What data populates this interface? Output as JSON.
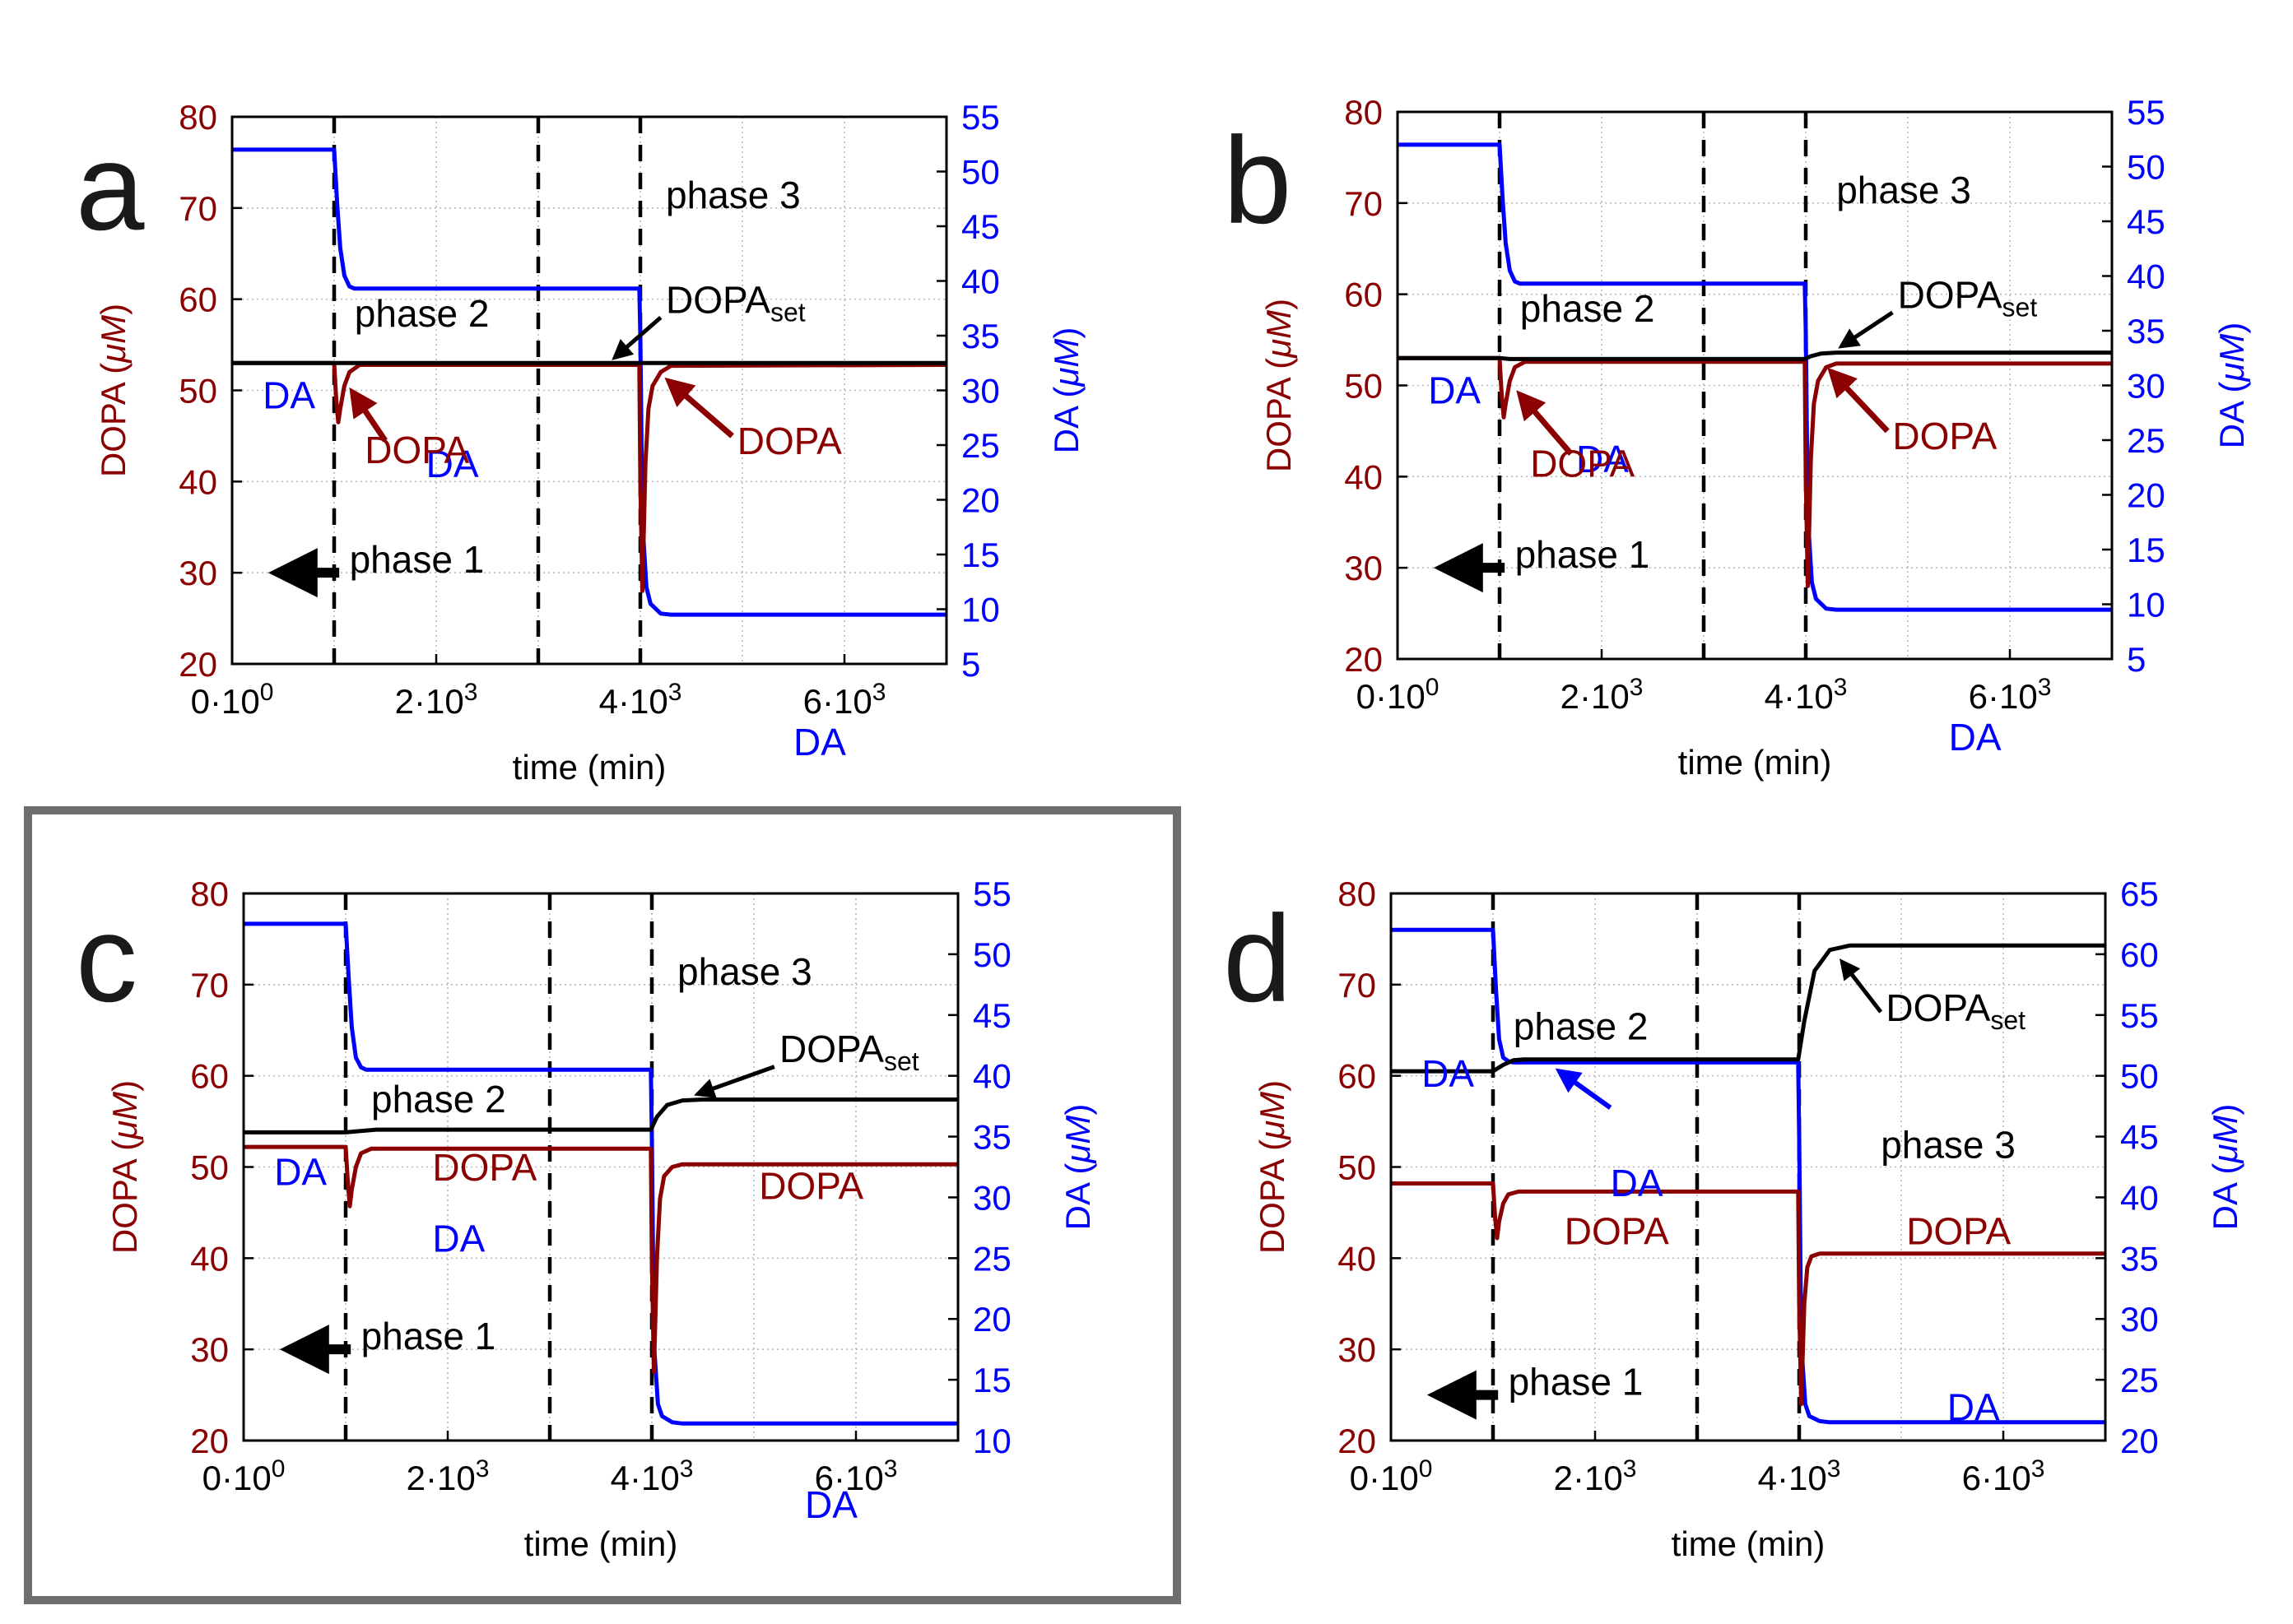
{
  "colors": {
    "dopa": "#8b0000",
    "da": "#0000ff",
    "set": "#000000",
    "frame": "#6e6e6e"
  },
  "chart_data": [
    {
      "id": "a",
      "type": "line",
      "panel_label": "a",
      "xlabel": "time (min)",
      "ylabel_left": "DOPA (",
      "ylabel_right": "DA (",
      "ylabel_unit": "μM",
      "ylabel_close": ")",
      "xlim": [
        0,
        7000
      ],
      "ylim_left": [
        20,
        80
      ],
      "ylim_right": [
        5,
        55
      ],
      "xticks": [
        0,
        2000,
        4000,
        6000
      ],
      "xtick_labels": [
        [
          "0·10",
          "0"
        ],
        [
          "2·10",
          "3"
        ],
        [
          "4·10",
          "3"
        ],
        [
          "6·10",
          "3"
        ]
      ],
      "yticks_left": [
        20,
        30,
        40,
        50,
        60,
        70,
        80
      ],
      "yticks_right": [
        5,
        10,
        15,
        20,
        25,
        30,
        35,
        40,
        45,
        50,
        55
      ],
      "phase_lines": [
        1000,
        3000,
        4000
      ],
      "series": [
        {
          "name": "DA",
          "axis": "right",
          "x": [
            0,
            1000,
            1030,
            1060,
            1100,
            1150,
            1200,
            1300,
            3990,
            4000,
            4020,
            4060,
            4100,
            4200,
            4300,
            7000
          ],
          "y": [
            52,
            52,
            47,
            43,
            40.5,
            39.5,
            39.3,
            39.3,
            39.3,
            35,
            18,
            12,
            10.5,
            9.6,
            9.5,
            9.5
          ]
        },
        {
          "name": "DOPA",
          "axis": "left",
          "x": [
            0,
            1000,
            1020,
            1040,
            1060,
            1100,
            1150,
            1250,
            3990,
            4000,
            4020,
            4050,
            4080,
            4120,
            4200,
            4300,
            7000
          ],
          "y": [
            53,
            53,
            49,
            46.5,
            48,
            50.5,
            52,
            52.8,
            52.8,
            40,
            28,
            42,
            48,
            50.5,
            52,
            52.7,
            52.8
          ]
        },
        {
          "name": "DOPAset",
          "axis": "left",
          "x": [
            0,
            7000
          ],
          "y": [
            53,
            53
          ]
        }
      ],
      "labels": {
        "phase1": "phase 1",
        "phase2": "phase 2",
        "phase3": "phase 3",
        "dopa1": "DOPA",
        "dopa2": "DOPA",
        "da1": "DA",
        "da2": "DA",
        "da3": "DA",
        "dopaset": "DOPA",
        "dopaset_sub": "set"
      }
    },
    {
      "id": "b",
      "type": "line",
      "panel_label": "b",
      "xlabel": "time (min)",
      "ylabel_left": "DOPA (",
      "ylabel_right": "DA (",
      "ylabel_unit": "μM",
      "ylabel_close": ")",
      "xlim": [
        0,
        7000
      ],
      "ylim_left": [
        20,
        80
      ],
      "ylim_right": [
        5,
        55
      ],
      "xticks": [
        0,
        2000,
        4000,
        6000
      ],
      "xtick_labels": [
        [
          "0·10",
          "0"
        ],
        [
          "2·10",
          "3"
        ],
        [
          "4·10",
          "3"
        ],
        [
          "6·10",
          "3"
        ]
      ],
      "yticks_left": [
        20,
        30,
        40,
        50,
        60,
        70,
        80
      ],
      "yticks_right": [
        5,
        10,
        15,
        20,
        25,
        30,
        35,
        40,
        45,
        50,
        55
      ],
      "phase_lines": [
        1000,
        3000,
        4000
      ],
      "series": [
        {
          "name": "DA",
          "axis": "right",
          "x": [
            0,
            1000,
            1030,
            1060,
            1100,
            1150,
            1200,
            1300,
            3990,
            4000,
            4020,
            4060,
            4100,
            4200,
            4300,
            7000
          ],
          "y": [
            52,
            52,
            47,
            43,
            40.5,
            39.5,
            39.3,
            39.3,
            39.3,
            35,
            18,
            12,
            10.5,
            9.6,
            9.5,
            9.5
          ]
        },
        {
          "name": "DOPA",
          "axis": "left",
          "x": [
            0,
            1000,
            1020,
            1040,
            1060,
            1100,
            1150,
            1250,
            3990,
            4000,
            4020,
            4050,
            4080,
            4120,
            4200,
            4300,
            7000
          ],
          "y": [
            53,
            53,
            49,
            46.5,
            48,
            50.5,
            52,
            52.6,
            52.6,
            40,
            28,
            42,
            48,
            50.5,
            52,
            52.4,
            52.4
          ]
        },
        {
          "name": "DOPAset",
          "axis": "left",
          "x": [
            0,
            1000,
            1100,
            3990,
            4050,
            4150,
            4300,
            7000
          ],
          "y": [
            53,
            53,
            52.9,
            52.9,
            53.2,
            53.5,
            53.6,
            53.6
          ]
        }
      ],
      "labels": {
        "phase1": "phase 1",
        "phase2": "phase 2",
        "phase3": "phase 3",
        "dopa1": "DOPA",
        "dopa2": "DOPA",
        "da1": "DA",
        "da2": "DA",
        "da3": "DA",
        "dopaset": "DOPA",
        "dopaset_sub": "set"
      }
    },
    {
      "id": "c",
      "type": "line",
      "panel_label": "c",
      "xlabel": "time (min)",
      "ylabel_left": "DOPA (",
      "ylabel_right": "DA (",
      "ylabel_unit": "μM",
      "ylabel_close": ")",
      "xlim": [
        0,
        7000
      ],
      "ylim_left": [
        20,
        80
      ],
      "ylim_right": [
        10,
        55
      ],
      "xticks": [
        0,
        2000,
        4000,
        6000
      ],
      "xtick_labels": [
        [
          "0·10",
          "0"
        ],
        [
          "2·10",
          "3"
        ],
        [
          "4·10",
          "3"
        ],
        [
          "6·10",
          "3"
        ]
      ],
      "yticks_left": [
        20,
        30,
        40,
        50,
        60,
        70,
        80
      ],
      "yticks_right": [
        10,
        15,
        20,
        25,
        30,
        35,
        40,
        45,
        50,
        55
      ],
      "phase_lines": [
        1000,
        3000,
        4000
      ],
      "series": [
        {
          "name": "DA",
          "axis": "right",
          "x": [
            0,
            1000,
            1030,
            1060,
            1100,
            1150,
            1200,
            1300,
            3990,
            4000,
            4020,
            4060,
            4100,
            4200,
            4300,
            7000
          ],
          "y": [
            52.5,
            52.5,
            48,
            44,
            41.5,
            40.7,
            40.5,
            40.5,
            40.5,
            35,
            18,
            13,
            12,
            11.5,
            11.4,
            11.4
          ]
        },
        {
          "name": "DOPA",
          "axis": "left",
          "x": [
            0,
            1000,
            1020,
            1040,
            1060,
            1100,
            1150,
            1250,
            3990,
            4000,
            4020,
            4050,
            4080,
            4120,
            4200,
            4300,
            7000
          ],
          "y": [
            52.2,
            52.2,
            48.5,
            45.7,
            47.5,
            50,
            51.5,
            52,
            52,
            40,
            27.5,
            40,
            46.5,
            49,
            50,
            50.3,
            50.3
          ]
        },
        {
          "name": "DOPAset",
          "axis": "left",
          "x": [
            0,
            1000,
            1100,
            1300,
            3990,
            4050,
            4150,
            4300,
            4500,
            7000
          ],
          "y": [
            53.8,
            53.8,
            53.9,
            54.1,
            54.1,
            55.5,
            56.8,
            57.3,
            57.4,
            57.4
          ]
        }
      ],
      "labels": {
        "phase1": "phase 1",
        "phase2": "phase 2",
        "phase3": "phase 3",
        "dopa1": "DOPA",
        "dopa2": "DOPA",
        "da1": "DA",
        "da2": "DA",
        "da3": "DA",
        "dopaset": "DOPA",
        "dopaset_sub": "set"
      }
    },
    {
      "id": "d",
      "type": "line",
      "panel_label": "d",
      "xlabel": "time (min)",
      "ylabel_left": "DOPA (",
      "ylabel_right": "DA (",
      "ylabel_unit": "μM",
      "ylabel_close": ")",
      "xlim": [
        0,
        7000
      ],
      "ylim_left": [
        20,
        80
      ],
      "ylim_right": [
        20,
        65
      ],
      "xticks": [
        0,
        2000,
        4000,
        6000
      ],
      "xtick_labels": [
        [
          "0·10",
          "0"
        ],
        [
          "2·10",
          "3"
        ],
        [
          "4·10",
          "3"
        ],
        [
          "6·10",
          "3"
        ]
      ],
      "yticks_left": [
        20,
        30,
        40,
        50,
        60,
        70,
        80
      ],
      "yticks_right": [
        20,
        25,
        30,
        35,
        40,
        45,
        50,
        55,
        60,
        65
      ],
      "phase_lines": [
        1000,
        3000,
        4000
      ],
      "series": [
        {
          "name": "DA",
          "axis": "right",
          "x": [
            0,
            1000,
            1030,
            1060,
            1100,
            1150,
            1200,
            1300,
            3990,
            4000,
            4020,
            4060,
            4100,
            4200,
            4300,
            7000
          ],
          "y": [
            62,
            62,
            57,
            53,
            51.5,
            51.2,
            51.1,
            51.1,
            51.1,
            45,
            28,
            23,
            22,
            21.6,
            21.5,
            21.5
          ]
        },
        {
          "name": "DOPA",
          "axis": "left",
          "x": [
            0,
            1000,
            1020,
            1040,
            1060,
            1100,
            1150,
            1250,
            3990,
            4000,
            4020,
            4050,
            4080,
            4120,
            4200,
            4300,
            7000
          ],
          "y": [
            48.2,
            48.2,
            44.5,
            42.2,
            44,
            46,
            47,
            47.3,
            47.3,
            35,
            24,
            35,
            39,
            40.2,
            40.5,
            40.5,
            40.5
          ]
        },
        {
          "name": "DOPAset",
          "axis": "left",
          "x": [
            0,
            1000,
            1100,
            1200,
            1300,
            3990,
            4050,
            4150,
            4300,
            4500,
            7000
          ],
          "y": [
            60.5,
            60.5,
            61.2,
            61.7,
            61.8,
            61.8,
            66,
            71.5,
            73.8,
            74.3,
            74.3
          ]
        }
      ],
      "labels": {
        "phase1": "phase 1",
        "phase2": "phase 2",
        "phase3": "phase 3",
        "dopa1": "DOPA",
        "dopa2": "DOPA",
        "da1": "DA",
        "da2": "DA",
        "da3": "DA",
        "dopaset": "DOPA",
        "dopaset_sub": "set"
      }
    }
  ]
}
